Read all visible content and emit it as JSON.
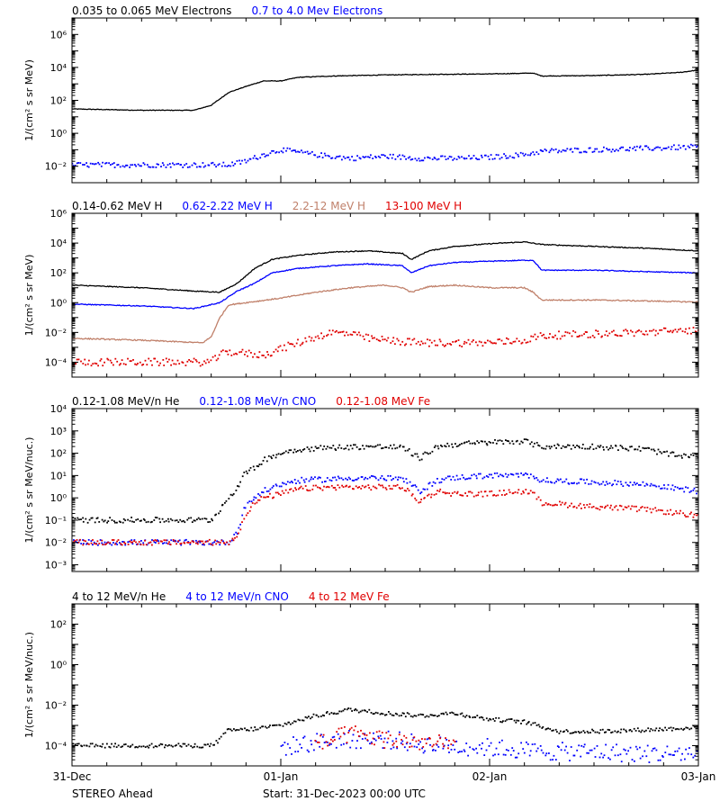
{
  "footer": {
    "spacecraft": "STEREO Ahead",
    "start": "Start: 31-Dec-2023 00:00 UTC"
  },
  "colors": {
    "black": "#000000",
    "blue": "#0000ff",
    "tan": "#c0806a",
    "red": "#e00000"
  },
  "chart_data": [
    {
      "type": "scatter",
      "ylabel": "1/(cm² s sr MeV)",
      "yscale": "log",
      "ylim": [
        0.001,
        10000000
      ],
      "ytick_exps": [
        -2,
        0,
        2,
        4,
        6
      ],
      "xlim": [
        0,
        72
      ],
      "x_ticks": [
        0,
        24,
        48,
        72
      ],
      "x_tick_labels": [
        "31-Dec",
        "01-Jan",
        "02-Jan",
        "03-Jan"
      ],
      "series": [
        {
          "name": "0.035 to 0.065 MeV Electrons",
          "color": "#000000",
          "mode": "line",
          "noise": 0.02,
          "x": [
            0,
            8,
            14,
            16,
            18,
            20,
            22,
            24,
            26,
            30,
            36,
            42,
            48,
            53,
            54,
            60,
            66,
            70,
            72
          ],
          "y": [
            30,
            25,
            25,
            50,
            300,
            700,
            1500,
            1500,
            2500,
            3000,
            3500,
            3800,
            4000,
            4500,
            3000,
            3200,
            3800,
            5000,
            7000
          ]
        },
        {
          "name": "0.7 to 4.0 Mev Electrons",
          "color": "#0000ff",
          "mode": "scatter",
          "noise": 0.15,
          "x": [
            0,
            10,
            18,
            20,
            22,
            24,
            28,
            32,
            36,
            40,
            45,
            48,
            52,
            54,
            60,
            66,
            72
          ],
          "y": [
            0.012,
            0.012,
            0.012,
            0.02,
            0.05,
            0.1,
            0.05,
            0.03,
            0.04,
            0.03,
            0.03,
            0.035,
            0.05,
            0.08,
            0.1,
            0.12,
            0.15
          ]
        }
      ]
    },
    {
      "type": "scatter",
      "ylabel": "1/(cm² s sr MeV)",
      "yscale": "log",
      "ylim": [
        1e-05,
        1000000
      ],
      "ytick_exps": [
        -4,
        -2,
        0,
        2,
        4,
        6
      ],
      "xlim": [
        0,
        72
      ],
      "x_ticks": [
        0,
        24,
        48,
        72
      ],
      "x_tick_labels": [
        "31-Dec",
        "01-Jan",
        "02-Jan",
        "03-Jan"
      ],
      "series": [
        {
          "name": "0.14-0.62 MeV H",
          "color": "#000000",
          "mode": "line",
          "noise": 0.03,
          "x": [
            0,
            8,
            14,
            17,
            19,
            21,
            23,
            26,
            30,
            34,
            38,
            39,
            41,
            44,
            48,
            52,
            54,
            60,
            66,
            72
          ],
          "y": [
            15,
            10,
            6,
            5,
            20,
            200,
            800,
            1500,
            2500,
            3000,
            2000,
            800,
            3000,
            6000,
            9000,
            12000,
            8000,
            6000,
            4500,
            3000
          ]
        },
        {
          "name": "0.62-2.22 MeV H",
          "color": "#0000ff",
          "mode": "line",
          "noise": 0.03,
          "x": [
            0,
            8,
            14,
            17,
            19,
            21,
            23,
            26,
            30,
            34,
            38,
            39,
            41,
            44,
            48,
            52,
            53,
            54,
            60,
            66,
            72
          ],
          "y": [
            0.8,
            0.6,
            0.4,
            1,
            6,
            20,
            100,
            200,
            300,
            400,
            300,
            100,
            300,
            500,
            600,
            700,
            700,
            150,
            150,
            120,
            100
          ]
        },
        {
          "name": "2.2-12 MeV H",
          "color": "#c0806a",
          "mode": "line",
          "noise": 0.04,
          "x": [
            0,
            8,
            15,
            16,
            17,
            18,
            20,
            24,
            28,
            32,
            36,
            38,
            39,
            41,
            44,
            48,
            52,
            53,
            54,
            60,
            66,
            72
          ],
          "y": [
            0.004,
            0.003,
            0.002,
            0.005,
            0.1,
            0.7,
            1,
            2,
            5,
            10,
            15,
            10,
            5,
            12,
            15,
            10,
            10,
            5,
            1.5,
            1.5,
            1.3,
            1.1
          ]
        },
        {
          "name": "13-100 MeV H",
          "color": "#e00000",
          "mode": "scatter",
          "noise": 0.25,
          "x": [
            0,
            8,
            16,
            17,
            18,
            22,
            24,
            26,
            28,
            30,
            32,
            34,
            36,
            40,
            44,
            48,
            52,
            54,
            60,
            66,
            72
          ],
          "y": [
            0.0001,
            0.0001,
            0.0001,
            0.0003,
            0.0005,
            0.0003,
            0.0008,
            0.002,
            0.005,
            0.01,
            0.008,
            0.004,
            0.003,
            0.002,
            0.002,
            0.002,
            0.003,
            0.006,
            0.008,
            0.01,
            0.015
          ]
        }
      ]
    },
    {
      "type": "scatter",
      "ylabel": "1/(cm² s sr MeV/nuc.)",
      "yscale": "log",
      "ylim": [
        0.0005,
        10000
      ],
      "ytick_exps": [
        -3,
        -2,
        -1,
        0,
        1,
        2,
        3,
        4
      ],
      "xlim": [
        0,
        72
      ],
      "x_ticks": [
        0,
        24,
        48,
        72
      ],
      "x_tick_labels": [
        "31-Dec",
        "01-Jan",
        "02-Jan",
        "03-Jan"
      ],
      "series": [
        {
          "name": "0.12-1.08 MeV/n He",
          "color": "#000000",
          "mode": "scatter",
          "noise": 0.12,
          "x": [
            0,
            4,
            8,
            12,
            16,
            17,
            18,
            19,
            20,
            21,
            22,
            24,
            26,
            30,
            34,
            38,
            40,
            42,
            44,
            48,
            52,
            53,
            54,
            60,
            66,
            70,
            72
          ],
          "y": [
            0.1,
            0.1,
            0.1,
            0.1,
            0.1,
            0.3,
            1,
            3,
            15,
            20,
            50,
            100,
            150,
            180,
            200,
            180,
            60,
            200,
            250,
            300,
            350,
            250,
            200,
            200,
            150,
            70,
            80
          ]
        },
        {
          "name": "0.12-1.08 MeV/n CNO",
          "color": "#0000ff",
          "mode": "scatter",
          "noise": 0.12,
          "x": [
            0,
            8,
            16,
            18,
            19,
            20,
            21,
            22,
            24,
            26,
            30,
            34,
            38,
            40,
            42,
            44,
            48,
            52,
            53,
            54,
            60,
            66,
            70,
            72
          ],
          "y": [
            0.01,
            0.01,
            0.01,
            0.01,
            0.03,
            0.5,
            1,
            2,
            4,
            6,
            7,
            8,
            7,
            2,
            6,
            8,
            10,
            10,
            10,
            6,
            5,
            4,
            2.5,
            2
          ]
        },
        {
          "name": "0.12-1.08 MeV Fe",
          "color": "#e00000",
          "mode": "scatter",
          "noise": 0.12,
          "x": [
            0,
            8,
            16,
            18,
            19,
            20,
            21,
            22,
            24,
            26,
            30,
            34,
            38,
            40,
            42,
            44,
            48,
            52,
            53,
            54,
            60,
            66,
            70,
            72
          ],
          "y": [
            0.01,
            0.01,
            0.01,
            0.01,
            0.02,
            0.2,
            0.6,
            1,
            1.5,
            2.5,
            3,
            3,
            3,
            0.7,
            2,
            1.5,
            1.5,
            2,
            1.5,
            0.6,
            0.4,
            0.3,
            0.2,
            0.15
          ]
        }
      ]
    },
    {
      "type": "scatter",
      "ylabel": "1/(cm² s sr MeV/nuc.)",
      "yscale": "log",
      "ylim": [
        1e-05,
        1000
      ],
      "ytick_exps": [
        -4,
        -2,
        0,
        2
      ],
      "xlim": [
        0,
        72
      ],
      "x_ticks": [
        0,
        24,
        48,
        72
      ],
      "x_tick_labels": [
        "31-Dec",
        "01-Jan",
        "02-Jan",
        "03-Jan"
      ],
      "series": [
        {
          "name": "4 to 12 MeV/n He",
          "color": "#000000",
          "mode": "scatter",
          "noise": 0.1,
          "x": [
            0,
            8,
            16,
            17,
            18,
            20,
            24,
            28,
            32,
            36,
            40,
            44,
            48,
            52,
            56,
            60,
            66,
            72
          ],
          "y": [
            0.0001,
            0.0001,
            0.0001,
            0.0002,
            0.0006,
            0.0006,
            0.001,
            0.003,
            0.006,
            0.004,
            0.003,
            0.004,
            0.002,
            0.0015,
            0.0005,
            0.0005,
            0.0006,
            0.0008
          ]
        },
        {
          "name": "4 to 12 MeV/n CNO",
          "color": "#0000ff",
          "mode": "scatter",
          "noise": 0.45,
          "x": [
            24,
            30,
            36,
            42,
            48,
            54,
            60,
            66,
            72
          ],
          "y": [
            8e-05,
            0.0002,
            0.0002,
            0.0001,
            8e-05,
            5e-05,
            5e-05,
            4e-05,
            4e-05
          ]
        },
        {
          "name": "4 to 12 MeV Fe",
          "color": "#e00000",
          "mode": "scatter",
          "noise": 0.45,
          "x": [
            28,
            32,
            36,
            40,
            44
          ],
          "y": [
            0.0001,
            0.0004,
            0.0002,
            0.00015,
            0.0001
          ]
        }
      ]
    }
  ]
}
